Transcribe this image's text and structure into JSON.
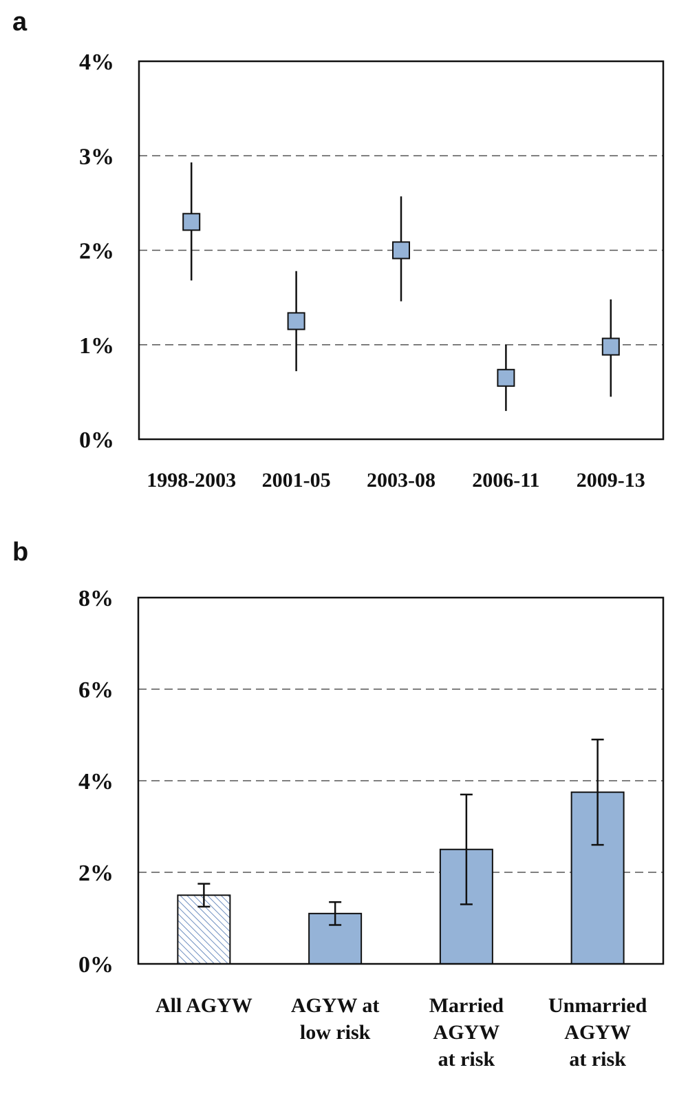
{
  "colors": {
    "fill": "#95b3d7",
    "hatch": "#6f8fc0",
    "frame": "#111111",
    "grid": "#555555"
  },
  "chart_data": [
    {
      "panel": "a",
      "type": "scatter",
      "categories": [
        "1998-2003",
        "2001-05",
        "2003-08",
        "2006-11",
        "2009-13"
      ],
      "values": [
        2.3,
        1.25,
        2.0,
        0.65,
        0.98
      ],
      "lower": [
        1.68,
        0.72,
        1.46,
        0.3,
        0.45
      ],
      "upper": [
        2.93,
        1.78,
        2.57,
        1.0,
        1.48
      ],
      "ylim": [
        0,
        4
      ],
      "yticks": [
        0,
        1,
        2,
        3,
        4
      ],
      "ytick_labels": [
        "0%",
        "1%",
        "2%",
        "3%",
        "4%"
      ],
      "grid": true,
      "title": "",
      "xlabel": "",
      "ylabel": ""
    },
    {
      "panel": "b",
      "type": "bar",
      "categories": [
        [
          "All AGYW"
        ],
        [
          "AGYW at",
          "low risk"
        ],
        [
          "Married",
          "AGYW",
          "at risk"
        ],
        [
          "Unmarried",
          "AGYW",
          "at risk"
        ]
      ],
      "values": [
        1.5,
        1.1,
        2.5,
        3.75
      ],
      "lower": [
        1.25,
        0.85,
        1.3,
        2.6
      ],
      "upper": [
        1.75,
        1.35,
        3.7,
        4.9
      ],
      "hatched": [
        true,
        false,
        false,
        false
      ],
      "ylim": [
        0,
        8
      ],
      "yticks": [
        0,
        2,
        4,
        6,
        8
      ],
      "ytick_labels": [
        "0%",
        "2%",
        "4%",
        "6%",
        "8%"
      ],
      "grid": true,
      "title": "",
      "xlabel": "",
      "ylabel": ""
    }
  ]
}
